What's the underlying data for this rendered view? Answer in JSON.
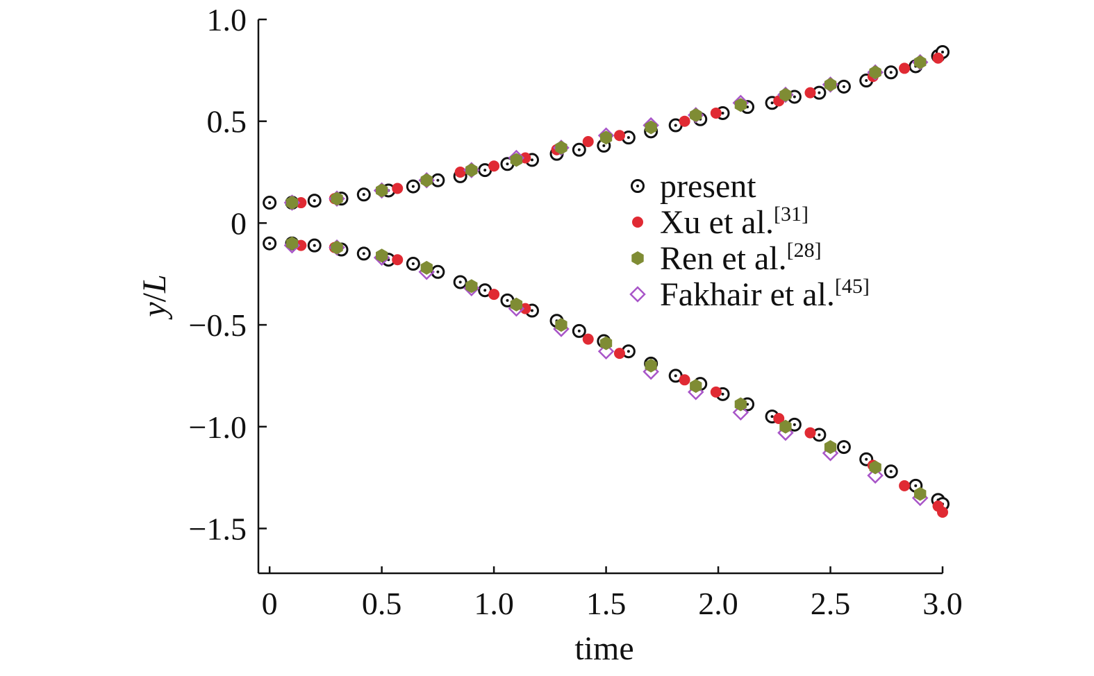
{
  "chart_data": {
    "type": "scatter",
    "xlabel": "time",
    "ylabel_var": "y",
    "ylabel_sep": "/",
    "ylabel_unit": "L",
    "xlim": [
      -0.05,
      3.0
    ],
    "ylim": [
      -1.72,
      1.0
    ],
    "xticks": [
      0,
      0.5,
      1.0,
      1.5,
      2.0,
      2.5,
      3.0
    ],
    "xtick_labels": [
      "0",
      "0.5",
      "1.0",
      "1.5",
      "2.0",
      "2.5",
      "3.0"
    ],
    "yticks": [
      1.0,
      0.5,
      0,
      -0.5,
      -1.0,
      -1.5
    ],
    "ytick_labels": [
      "1.0",
      "0.5",
      "0",
      "−0.5",
      "−1.0",
      "−1.5"
    ],
    "grid": false,
    "legend_position": "right-center",
    "series": [
      {
        "name": "present",
        "ref": "",
        "marker": "circle-dot",
        "color": "#111111",
        "upper": {
          "x": [
            0.0,
            0.1,
            0.2,
            0.32,
            0.42,
            0.53,
            0.64,
            0.75,
            0.85,
            0.96,
            1.06,
            1.17,
            1.28,
            1.38,
            1.49,
            1.6,
            1.7,
            1.81,
            1.92,
            2.02,
            2.13,
            2.24,
            2.34,
            2.45,
            2.56,
            2.66,
            2.77,
            2.88,
            2.98,
            3.0
          ],
          "y": [
            0.1,
            0.1,
            0.11,
            0.12,
            0.14,
            0.16,
            0.18,
            0.21,
            0.23,
            0.26,
            0.29,
            0.31,
            0.34,
            0.36,
            0.38,
            0.42,
            0.45,
            0.48,
            0.51,
            0.54,
            0.57,
            0.59,
            0.62,
            0.64,
            0.67,
            0.7,
            0.74,
            0.77,
            0.82,
            0.84
          ]
        },
        "lower": {
          "x": [
            0.0,
            0.1,
            0.2,
            0.32,
            0.42,
            0.53,
            0.64,
            0.75,
            0.85,
            0.96,
            1.06,
            1.17,
            1.28,
            1.38,
            1.49,
            1.6,
            1.7,
            1.81,
            1.92,
            2.02,
            2.13,
            2.24,
            2.34,
            2.45,
            2.56,
            2.66,
            2.77,
            2.88,
            2.98,
            3.0
          ],
          "y": [
            -0.1,
            -0.1,
            -0.11,
            -0.13,
            -0.15,
            -0.18,
            -0.2,
            -0.24,
            -0.29,
            -0.33,
            -0.38,
            -0.43,
            -0.48,
            -0.53,
            -0.58,
            -0.63,
            -0.69,
            -0.75,
            -0.79,
            -0.84,
            -0.89,
            -0.95,
            -0.99,
            -1.04,
            -1.1,
            -1.16,
            -1.22,
            -1.29,
            -1.36,
            -1.38
          ]
        }
      },
      {
        "name": "Xu et al.",
        "ref": "[31]",
        "marker": "filled-circle",
        "color": "#e02a33",
        "upper": {
          "x": [
            0.14,
            0.29,
            0.57,
            0.85,
            1.0,
            1.14,
            1.28,
            1.42,
            1.56,
            1.85,
            1.99,
            2.27,
            2.41,
            2.69,
            2.83,
            2.98
          ],
          "y": [
            0.1,
            0.12,
            0.17,
            0.25,
            0.28,
            0.32,
            0.36,
            0.4,
            0.43,
            0.5,
            0.54,
            0.6,
            0.64,
            0.72,
            0.76,
            0.81
          ]
        },
        "lower": {
          "x": [
            0.14,
            0.29,
            0.57,
            1.0,
            1.14,
            1.42,
            1.56,
            1.85,
            1.99,
            2.27,
            2.41,
            2.69,
            2.83,
            2.98,
            3.0
          ],
          "y": [
            -0.11,
            -0.12,
            -0.18,
            -0.35,
            -0.42,
            -0.57,
            -0.64,
            -0.77,
            -0.83,
            -0.96,
            -1.03,
            -1.19,
            -1.29,
            -1.39,
            -1.42
          ]
        }
      },
      {
        "name": "Ren et al.",
        "ref": "[28]",
        "marker": "filled-hexagon",
        "color": "#7f8c34",
        "upper": {
          "x": [
            0.1,
            0.3,
            0.5,
            0.7,
            0.9,
            1.1,
            1.3,
            1.5,
            1.7,
            1.9,
            2.1,
            2.3,
            2.5,
            2.7,
            2.9
          ],
          "y": [
            0.1,
            0.12,
            0.16,
            0.21,
            0.26,
            0.31,
            0.37,
            0.42,
            0.47,
            0.53,
            0.58,
            0.63,
            0.68,
            0.74,
            0.79
          ]
        },
        "lower": {
          "x": [
            0.1,
            0.3,
            0.5,
            0.7,
            0.9,
            1.1,
            1.3,
            1.5,
            1.7,
            1.9,
            2.1,
            2.3,
            2.5,
            2.7,
            2.9
          ],
          "y": [
            -0.1,
            -0.12,
            -0.16,
            -0.22,
            -0.31,
            -0.4,
            -0.5,
            -0.59,
            -0.7,
            -0.8,
            -0.89,
            -1.0,
            -1.1,
            -1.2,
            -1.33
          ]
        }
      },
      {
        "name": "Fakhair et al.",
        "ref": "[45]",
        "marker": "open-diamond",
        "color": "#a855c8",
        "upper": {
          "x": [
            0.1,
            0.3,
            0.5,
            0.7,
            0.9,
            1.1,
            1.3,
            1.5,
            1.7,
            1.9,
            2.1,
            2.3,
            2.5,
            2.7,
            2.9
          ],
          "y": [
            0.1,
            0.12,
            0.16,
            0.21,
            0.26,
            0.32,
            0.37,
            0.43,
            0.48,
            0.53,
            0.59,
            0.63,
            0.68,
            0.74,
            0.79
          ]
        },
        "lower": {
          "x": [
            0.1,
            0.3,
            0.5,
            0.7,
            0.9,
            1.1,
            1.3,
            1.5,
            1.7,
            1.9,
            2.1,
            2.3,
            2.5,
            2.7,
            2.9
          ],
          "y": [
            -0.11,
            -0.12,
            -0.17,
            -0.24,
            -0.32,
            -0.42,
            -0.52,
            -0.63,
            -0.73,
            -0.83,
            -0.93,
            -1.03,
            -1.13,
            -1.24,
            -1.35
          ]
        }
      }
    ]
  }
}
